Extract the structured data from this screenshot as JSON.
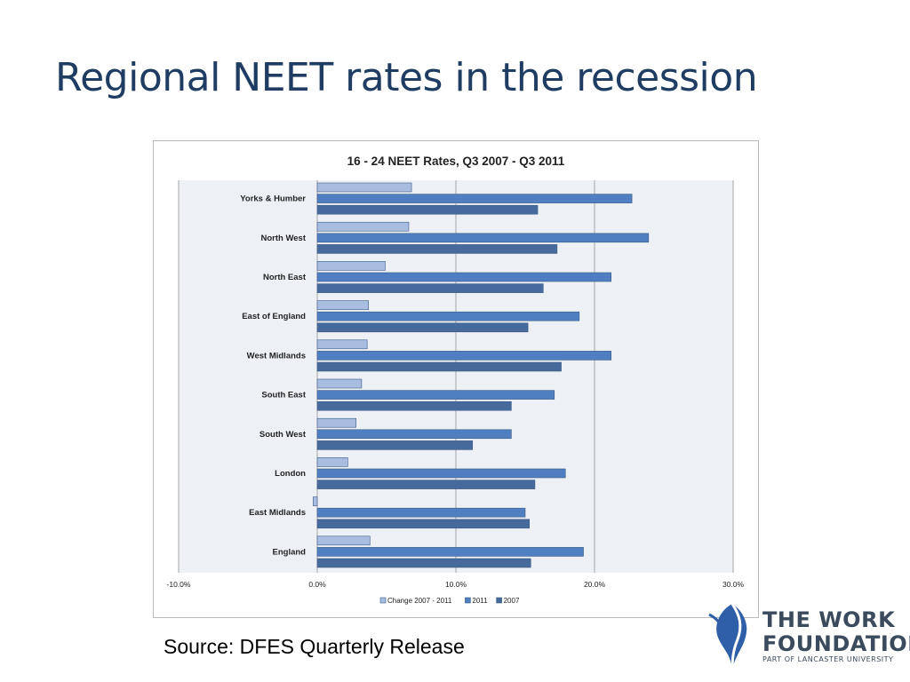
{
  "slide": {
    "title": "Regional NEET rates in the recession",
    "source": "Source: DFES Quarterly Release"
  },
  "logo": {
    "line1": "THE WORK",
    "line2": "FOUNDATION",
    "line3": "PART OF LANCASTER UNIVERSITY",
    "color": "#3b4a5c",
    "accent": "#2f5fa8"
  },
  "chart_data": {
    "type": "bar",
    "orientation": "horizontal",
    "title": "16 - 24 NEET Rates, Q3 2007 - Q3 2011",
    "categories": [
      "Yorks & Humber",
      "North West",
      "North East",
      "East of England",
      "West Midlands",
      "South East",
      "South West",
      "London",
      "East Midlands",
      "England"
    ],
    "series": [
      {
        "name": "Change 2007 - 2011",
        "color": "#a9bde0",
        "values": [
          6.8,
          6.6,
          4.9,
          3.7,
          3.6,
          3.2,
          2.8,
          2.2,
          -0.3,
          3.8
        ]
      },
      {
        "name": "2011",
        "color": "#4f7fc0",
        "values": [
          22.7,
          23.9,
          21.2,
          18.9,
          21.2,
          17.1,
          14.0,
          17.9,
          15.0,
          19.2
        ]
      },
      {
        "name": "2007",
        "color": "#456a9b",
        "values": [
          15.9,
          17.3,
          16.3,
          15.2,
          17.6,
          14.0,
          11.2,
          15.7,
          15.3,
          15.4
        ]
      }
    ],
    "xlim": [
      -10,
      30
    ],
    "xticks": [
      "-10.0%",
      "0.0%",
      "10.0%",
      "20.0%",
      "30.0%"
    ],
    "grid": true,
    "legend_position": "bottom"
  }
}
